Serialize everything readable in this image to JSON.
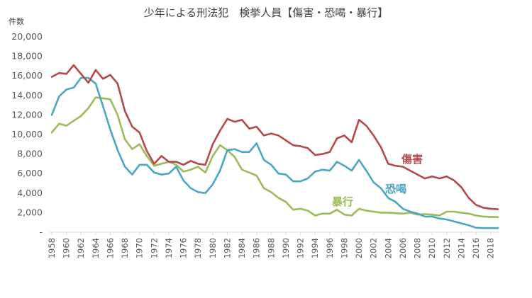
{
  "chart_data": {
    "type": "line",
    "title": "少年による刑法犯　検挙人員【傷害・恐喝・暴行】",
    "ylabel": "件数",
    "xlabel": "",
    "ylim": [
      0,
      20000
    ],
    "yticks": [
      {
        "value": 0,
        "label": "-"
      },
      {
        "value": 2000,
        "label": "2,000"
      },
      {
        "value": 4000,
        "label": "4,000"
      },
      {
        "value": 6000,
        "label": "6,000"
      },
      {
        "value": 8000,
        "label": "8,000"
      },
      {
        "value": 10000,
        "label": "10,000"
      },
      {
        "value": 12000,
        "label": "12,000"
      },
      {
        "value": 14000,
        "label": "14,000"
      },
      {
        "value": 16000,
        "label": "16,000"
      },
      {
        "value": 18000,
        "label": "18,000"
      },
      {
        "value": 20000,
        "label": "20,000"
      }
    ],
    "xticks": [
      "1958",
      "1960",
      "1962",
      "1964",
      "1966",
      "1968",
      "1970",
      "1972",
      "1974",
      "1976",
      "1978",
      "1980",
      "1982",
      "1984",
      "1986",
      "1988",
      "1990",
      "1992",
      "1994",
      "1996",
      "1998",
      "2000",
      "2002",
      "2004",
      "2006",
      "2008",
      "2010",
      "2012",
      "2014",
      "2016",
      "2018"
    ],
    "grid": false,
    "legend": "inline labels",
    "x": [
      1958,
      1959,
      1960,
      1961,
      1962,
      1963,
      1964,
      1965,
      1966,
      1967,
      1968,
      1969,
      1970,
      1971,
      1972,
      1973,
      1974,
      1975,
      1976,
      1977,
      1978,
      1979,
      1980,
      1981,
      1982,
      1983,
      1984,
      1985,
      1986,
      1987,
      1988,
      1989,
      1990,
      1991,
      1992,
      1993,
      1994,
      1995,
      1996,
      1997,
      1998,
      1999,
      2000,
      2001,
      2002,
      2003,
      2004,
      2005,
      2006,
      2007,
      2008,
      2009,
      2010,
      2011,
      2012,
      2013,
      2014,
      2015,
      2016,
      2017,
      2018,
      2019
    ],
    "series": [
      {
        "name": "傷害",
        "color": "#b5484b",
        "values": [
          15900,
          16300,
          16200,
          17100,
          16200,
          15300,
          16600,
          15700,
          16100,
          15200,
          12400,
          10800,
          10200,
          8300,
          7000,
          7800,
          7200,
          7200,
          6900,
          7300,
          7000,
          6900,
          9000,
          10400,
          11600,
          11300,
          11500,
          10600,
          10800,
          9900,
          10100,
          9900,
          9400,
          8900,
          8800,
          8600,
          7900,
          8000,
          8200,
          9600,
          9900,
          9200,
          11500,
          10900,
          9900,
          8700,
          7000,
          6800,
          6700,
          6300,
          5900,
          5500,
          5700,
          5500,
          5700,
          5300,
          4600,
          3500,
          2800,
          2500,
          2400,
          2350
        ]
      },
      {
        "name": "恐喝",
        "color": "#4aa7c2",
        "values": [
          12000,
          13900,
          14600,
          14800,
          15800,
          15800,
          15200,
          12900,
          10500,
          8400,
          6700,
          5900,
          6900,
          6900,
          6100,
          5900,
          6000,
          6700,
          5300,
          4500,
          4100,
          4000,
          4900,
          6300,
          8400,
          8500,
          8200,
          8200,
          9100,
          7400,
          6900,
          6000,
          5900,
          5200,
          5200,
          5500,
          6200,
          6400,
          6300,
          7200,
          6800,
          6300,
          7400,
          6300,
          5100,
          4500,
          3500,
          3100,
          2400,
          2100,
          1900,
          1600,
          1600,
          1400,
          1300,
          1100,
          900,
          700,
          450,
          420,
          420,
          420
        ]
      },
      {
        "name": "暴行",
        "color": "#9bbb59",
        "values": [
          10200,
          11100,
          10900,
          11400,
          11900,
          12700,
          13800,
          13700,
          13600,
          12000,
          9500,
          8500,
          9000,
          7800,
          6800,
          7000,
          7200,
          6900,
          6200,
          6400,
          6700,
          6100,
          7800,
          8900,
          8400,
          7700,
          6400,
          6100,
          5800,
          4500,
          4100,
          3500,
          3100,
          2300,
          2400,
          2200,
          1700,
          1900,
          1900,
          2300,
          1800,
          1700,
          2400,
          2200,
          2100,
          2000,
          2000,
          1950,
          1900,
          2000,
          1800,
          1850,
          1800,
          1700,
          2100,
          2100,
          2000,
          1900,
          1700,
          1600,
          1550,
          1550
        ]
      }
    ]
  }
}
